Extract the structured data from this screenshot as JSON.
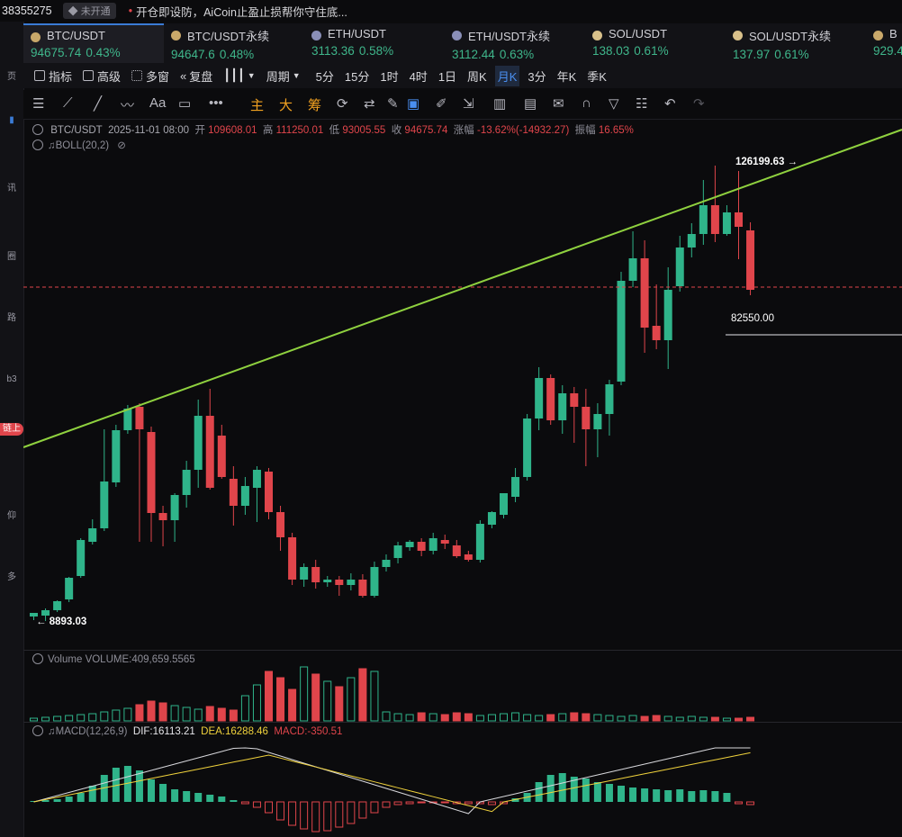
{
  "topbar": {
    "uid": "38355275",
    "vip": "未开通",
    "notice": "开仓即设防，AiCoin止盈止损帮你守住底..."
  },
  "tabs": [
    {
      "symbol": "BTC/USDT",
      "price": "94675.74",
      "change": "0.43%"
    },
    {
      "symbol": "BTC/USDT永续",
      "price": "94647.6",
      "change": "0.48%"
    },
    {
      "symbol": "ETH/USDT",
      "price": "3113.36",
      "change": "0.58%"
    },
    {
      "symbol": "ETH/USDT永续",
      "price": "3112.44",
      "change": "0.63%"
    },
    {
      "symbol": "SOL/USDT",
      "price": "138.03",
      "change": "0.61%"
    },
    {
      "symbol": "SOL/USDT永续",
      "price": "137.97",
      "change": "0.61%"
    },
    {
      "symbol": "B",
      "price": "929.4",
      "change": ""
    }
  ],
  "toolbar": {
    "indicator": "指标",
    "advanced": "高级",
    "multi_window": "多窗",
    "replay": "复盘",
    "cycle": "周期",
    "periods": [
      "5分",
      "15分",
      "1时",
      "4时",
      "1日",
      "周K",
      "月K",
      "3分",
      "年K",
      "季K"
    ],
    "active_period": "月K",
    "draw_labels": {
      "main": "主",
      "big": "大",
      "chip": "筹",
      "text": "Aa"
    }
  },
  "ohlc": {
    "symbol": "BTC/USDT",
    "time": "2025-11-01 08:00",
    "open_label": "开",
    "open": "109608.01",
    "high_label": "高",
    "high": "111250.01",
    "low_label": "低",
    "low": "93005.55",
    "close_label": "收",
    "close": "94675.74",
    "change_label": "涨幅",
    "change": "-13.62%(-14932.27)",
    "amp_label": "振幅",
    "amp": "16.65%"
  },
  "boll": "BOLL(20,2)",
  "annotations": {
    "high_marker": "126199.63 →",
    "low_marker": "← 8893.03",
    "level_marker": "82550.00"
  },
  "volume": {
    "label": "Volume",
    "value": "VOLUME:409,659.5565"
  },
  "macd": {
    "label": "MACD(12,26,9)",
    "dif": "DIF:16113.21",
    "dea": "DEA:16288.46",
    "macd": "MACD:-350.51"
  },
  "colors": {
    "up": "#2fb48a",
    "down": "#e0454b",
    "trend": "#8fd13f",
    "dif_line": "#d8d8dc",
    "dea_line": "#f0d23c"
  },
  "chart_data": {
    "type": "candlestick",
    "period": "月K",
    "highlighted_values": {
      "high": 126199.63,
      "low": 8893.03,
      "level": 82550.0,
      "last_close": 94675.74
    },
    "last_candle": {
      "open": 109608.01,
      "high": 111250.01,
      "low": 93005.55,
      "close": 94675.74
    },
    "volume_current": 409659.5565,
    "macd": {
      "dif": 16113.21,
      "dea": 16288.46,
      "macd": -350.51
    }
  }
}
